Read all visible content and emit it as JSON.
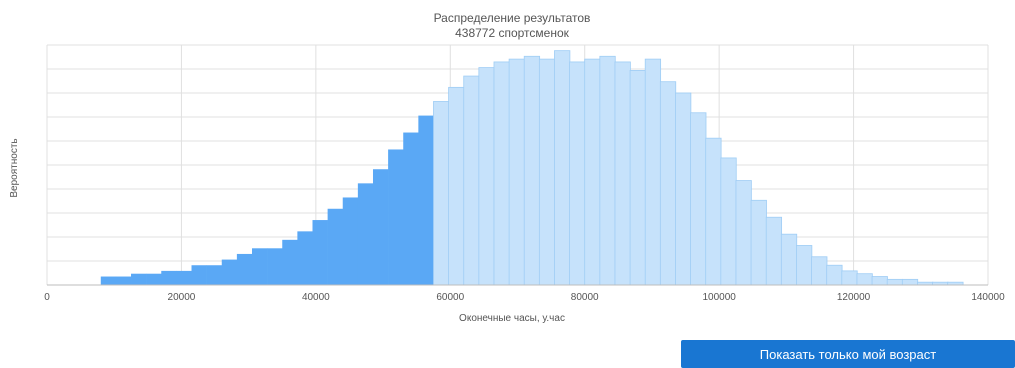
{
  "chart_data": {
    "type": "bar",
    "title": "Распределение результатов",
    "subtitle": "438772 спортсменок",
    "xlabel": "Оконечные часы, у.час",
    "ylabel": "Вероятность",
    "xlim": [
      0,
      140000
    ],
    "xticks": [
      "0",
      "20000",
      "40000",
      "60000",
      "80000",
      "100000",
      "120000",
      "140000"
    ],
    "bin_start": 8000,
    "bin_width": 2250,
    "highlight_until": 58000,
    "values": [
      3,
      3,
      4,
      4,
      5,
      5,
      7,
      7,
      9,
      11,
      13,
      13,
      16,
      19,
      23,
      27,
      31,
      36,
      41,
      48,
      54,
      60,
      65,
      70,
      74,
      77,
      79,
      80,
      81,
      80,
      83,
      79,
      80,
      81,
      79,
      76,
      80,
      72,
      68,
      61,
      52,
      45,
      37,
      30,
      24,
      18,
      14,
      10,
      7,
      5,
      4,
      3,
      2,
      2,
      1,
      1,
      1
    ],
    "ylim": [
      0,
      85
    ],
    "grid": true,
    "colors": {
      "highlight": "#5aa8f5",
      "rest": "#c6e2fb",
      "rest_stroke": "#9fcdf5",
      "grid": "#e0e0e0"
    }
  },
  "button": {
    "label": "Показать только мой возраст"
  }
}
